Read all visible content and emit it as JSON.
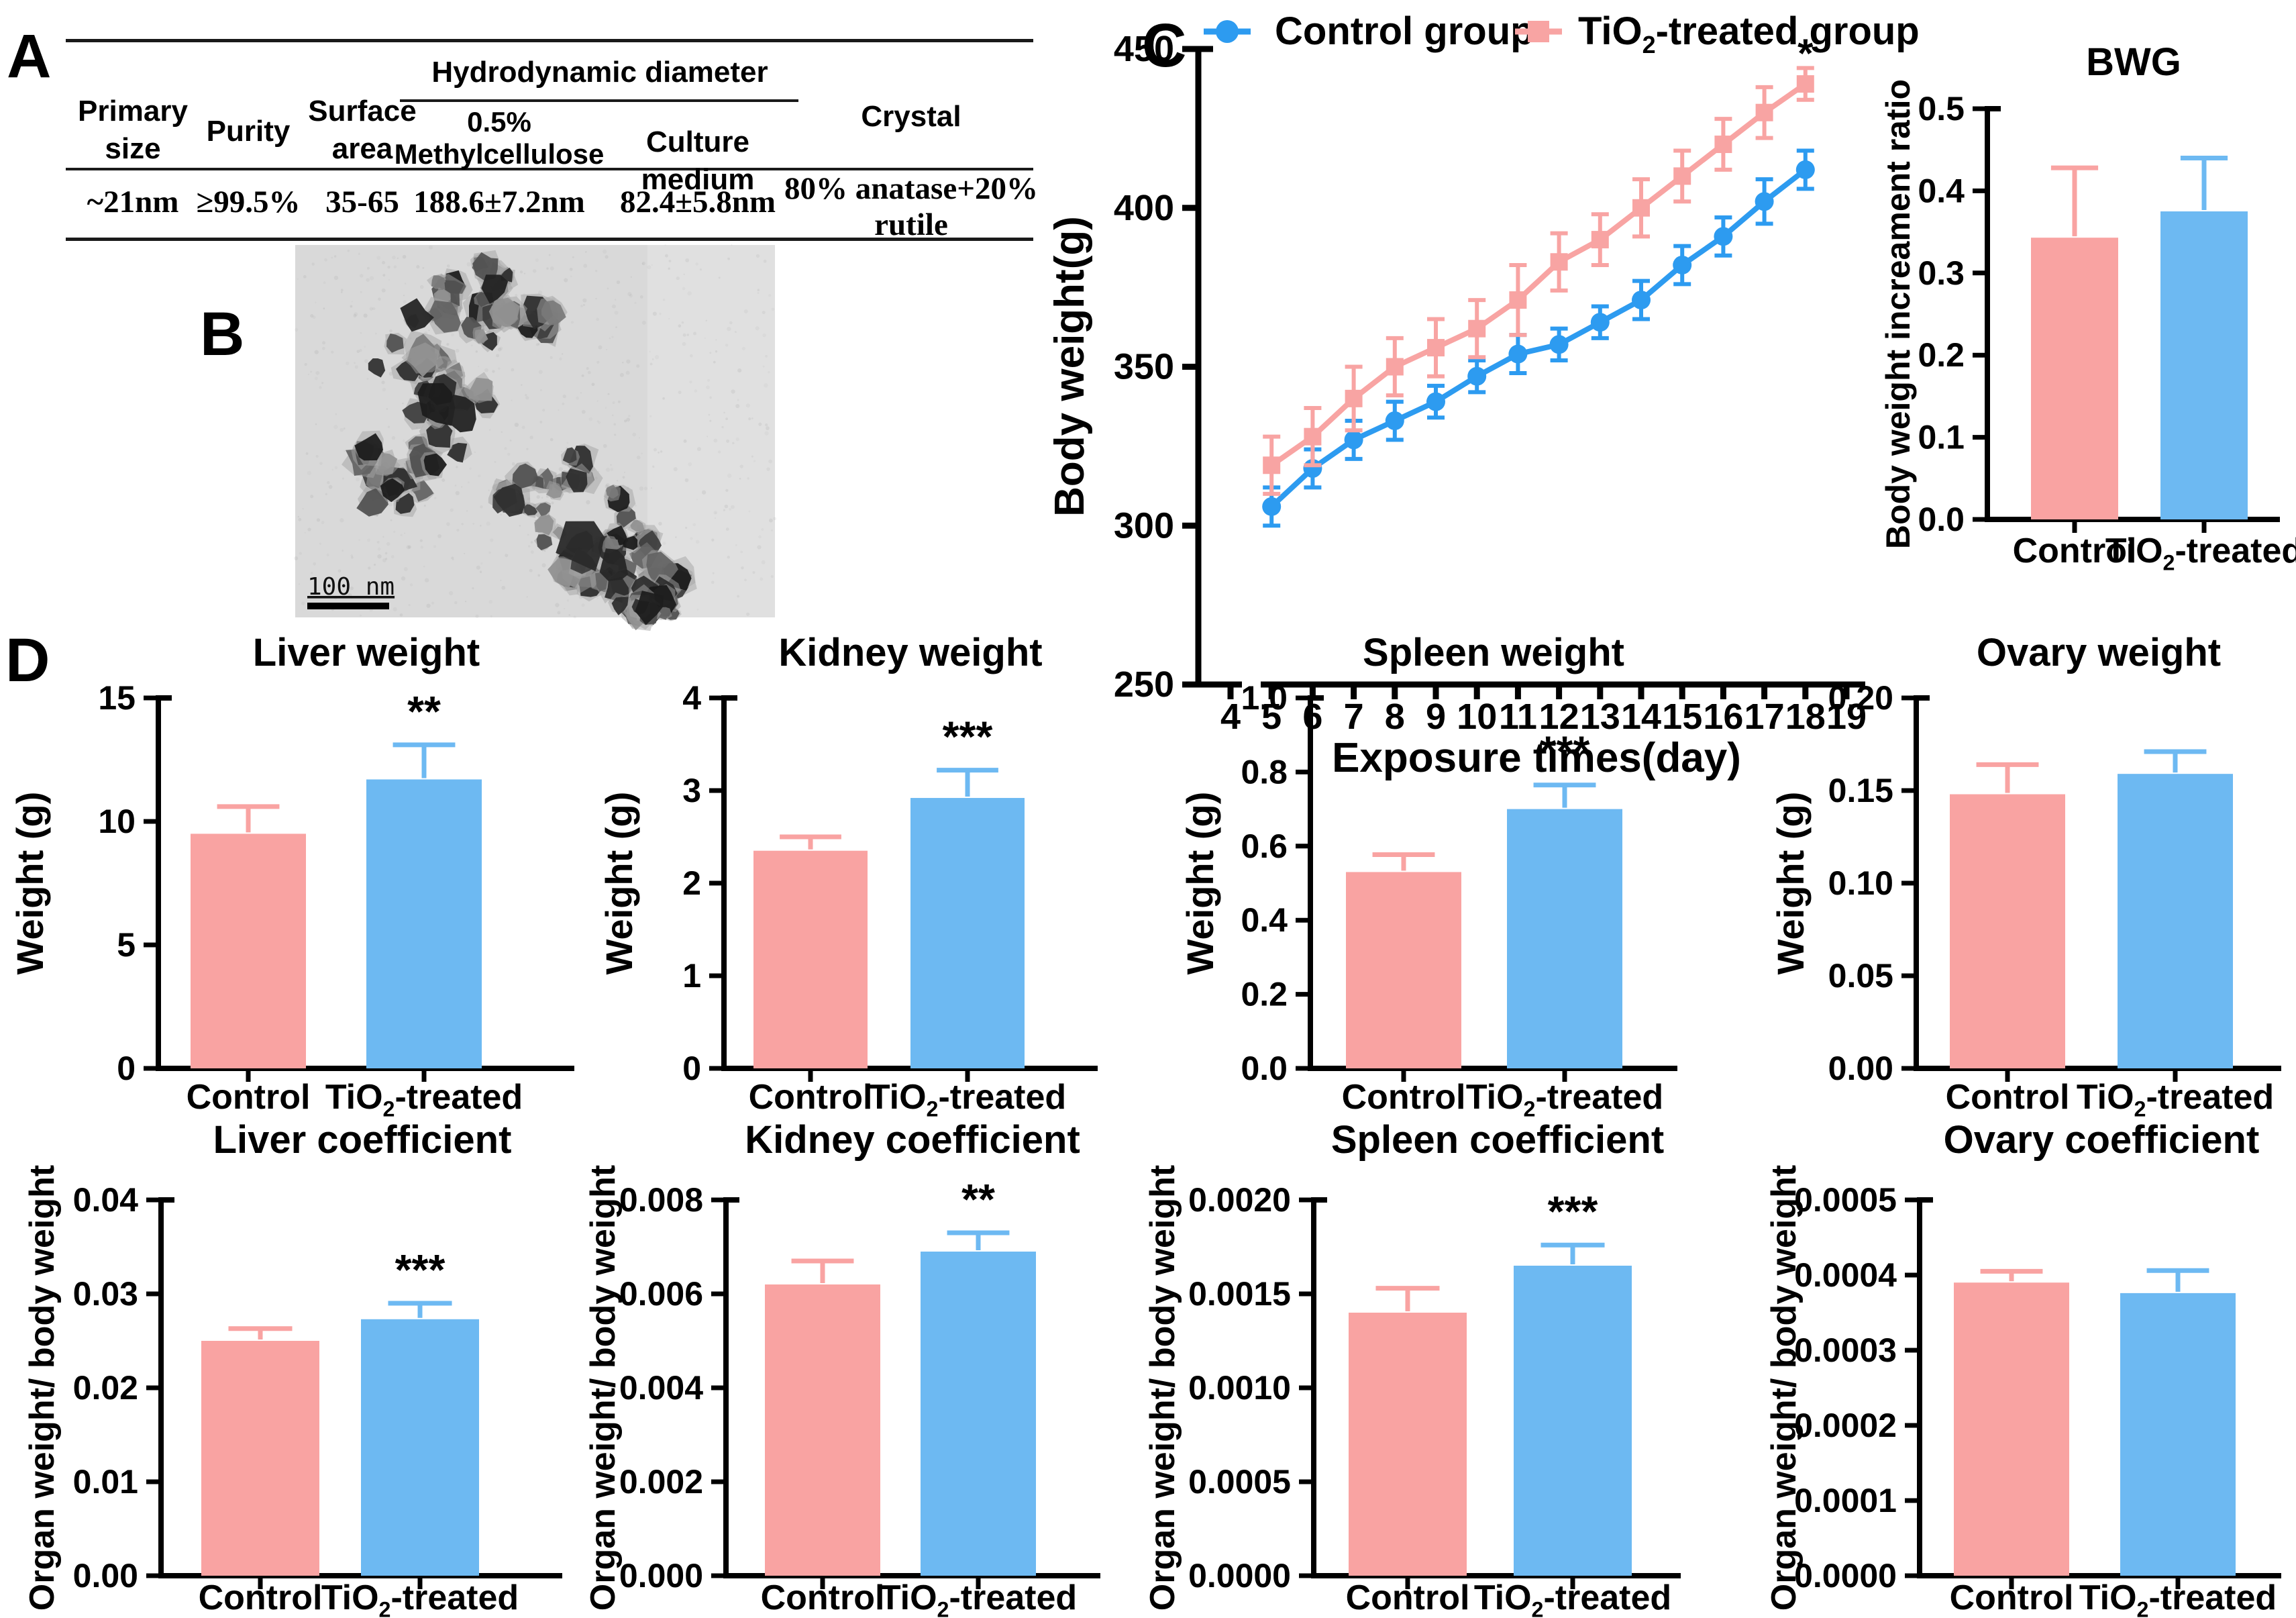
{
  "panels": {
    "a": "A",
    "b": "B",
    "c": "C",
    "d": "D"
  },
  "table": {
    "headers": {
      "primary_size": "Primary size",
      "purity": "Purity",
      "surface_area": "Surface area",
      "hydrodynamic_diameter": "Hydrodynamic diameter",
      "methylcellulose": "0.5% Methylcellulose",
      "culture_medium": "Culture medium",
      "crystal": "Crystal"
    },
    "row": {
      "primary_size": "~21nm",
      "purity": "≥99.5%",
      "surface_area": "35-65",
      "methylcellulose": "188.6±7.2nm",
      "culture_medium": "82.4±5.8nm",
      "crystal": "80% anatase+20% rutile"
    }
  },
  "tem": {
    "scale_label": "100 nm"
  },
  "colors": {
    "pink": "#F9A3A2",
    "blue": "#6DB9F2",
    "line_blue": "#2D9BF0",
    "line_pink": "#F8A4A3",
    "axis": "#000000"
  },
  "chart_data": [
    {
      "id": "body_weight",
      "type": "line",
      "title": "",
      "xlabel": "Exposure times(day)",
      "ylabel": "Body weight(g)",
      "xlim": [
        4,
        19
      ],
      "ylim": [
        250,
        450
      ],
      "xticks": [
        4,
        5,
        6,
        7,
        8,
        9,
        10,
        11,
        12,
        13,
        14,
        15,
        16,
        17,
        18,
        19
      ],
      "yticks": [
        250,
        300,
        350,
        400,
        450
      ],
      "x": [
        5,
        6,
        7,
        8,
        9,
        10,
        11,
        12,
        13,
        14,
        15,
        16,
        17,
        18
      ],
      "legend_position": "top",
      "series": [
        {
          "name": "Control group",
          "color": "line_blue",
          "marker": "circle",
          "values": [
            306,
            318,
            327,
            333,
            339,
            347,
            354,
            357,
            364,
            371,
            382,
            391,
            402,
            412
          ],
          "sd": [
            6,
            6,
            6,
            6,
            5,
            5,
            6,
            5,
            5,
            6,
            6,
            6,
            7,
            6
          ]
        },
        {
          "name": "TiO2-treated group",
          "color": "line_pink",
          "marker": "square",
          "values": [
            319,
            328,
            340,
            350,
            356,
            362,
            371,
            383,
            390,
            400,
            410,
            420,
            430,
            439
          ],
          "sd": [
            9,
            9,
            10,
            9,
            9,
            9,
            11,
            9,
            8,
            9,
            8,
            8,
            8,
            5
          ]
        }
      ],
      "annotation": {
        "text": "*",
        "x": 18,
        "series": 1
      }
    },
    {
      "id": "bwg",
      "type": "bar",
      "title": "BWG",
      "ylabel": "Body weight increament ratio",
      "ylim": [
        0,
        0.5
      ],
      "yticks": [
        0,
        0.1,
        0.2,
        0.3,
        0.4,
        0.5
      ],
      "ydecimals": 1,
      "categories": [
        "Control",
        "TiO2-treated"
      ],
      "values": [
        0.343,
        0.375
      ],
      "errors": [
        0.085,
        0.065
      ],
      "bar_colors": [
        "pink",
        "blue"
      ],
      "sig": null
    },
    {
      "id": "liver_weight",
      "type": "bar",
      "title": "Liver weight",
      "ylabel": "Weight (g)",
      "ylim": [
        0,
        15
      ],
      "yticks": [
        0,
        5,
        10,
        15
      ],
      "ydecimals": 0,
      "categories": [
        "Control",
        "TiO2-treated"
      ],
      "values": [
        9.5,
        11.7
      ],
      "errors": [
        1.1,
        1.4
      ],
      "bar_colors": [
        "pink",
        "blue"
      ],
      "sig": "**"
    },
    {
      "id": "kidney_weight",
      "type": "bar",
      "title": "Kidney weight",
      "ylabel": "Weight (g)",
      "ylim": [
        0,
        4
      ],
      "yticks": [
        0,
        1,
        2,
        3,
        4
      ],
      "ydecimals": 0,
      "categories": [
        "Control",
        "TiO2-treated"
      ],
      "values": [
        2.35,
        2.92
      ],
      "errors": [
        0.15,
        0.3
      ],
      "bar_colors": [
        "pink",
        "blue"
      ],
      "sig": "***"
    },
    {
      "id": "spleen_weight",
      "type": "bar",
      "title": "Spleen weight",
      "ylabel": "Weight (g)",
      "ylim": [
        0,
        1
      ],
      "yticks": [
        0,
        0.2,
        0.4,
        0.6,
        0.8,
        1
      ],
      "ydecimals": 1,
      "categories": [
        "Control",
        "TiO2-treated"
      ],
      "values": [
        0.53,
        0.7
      ],
      "errors": [
        0.047,
        0.065
      ],
      "bar_colors": [
        "pink",
        "blue"
      ],
      "sig": "***"
    },
    {
      "id": "ovary_weight",
      "type": "bar",
      "title": "Ovary weight",
      "ylabel": "Weight (g)",
      "ylim": [
        0,
        0.2
      ],
      "yticks": [
        0,
        0.05,
        0.1,
        0.15,
        0.2
      ],
      "ydecimals": 2,
      "categories": [
        "Control",
        "TiO2-treated"
      ],
      "values": [
        0.148,
        0.159
      ],
      "errors": [
        0.016,
        0.012
      ],
      "bar_colors": [
        "pink",
        "blue"
      ],
      "sig": null
    },
    {
      "id": "liver_coeff",
      "type": "bar",
      "title": "Liver coefficient",
      "ylabel": "Organ weight/ body weight",
      "ylim": [
        0,
        0.04
      ],
      "yticks": [
        0,
        0.01,
        0.02,
        0.03,
        0.04
      ],
      "ydecimals": 2,
      "categories": [
        "Control",
        "TiO2-treated"
      ],
      "values": [
        0.025,
        0.0273
      ],
      "errors": [
        0.0013,
        0.0017
      ],
      "bar_colors": [
        "pink",
        "blue"
      ],
      "sig": "***"
    },
    {
      "id": "kidney_coeff",
      "type": "bar",
      "title": "Kidney coefficient",
      "ylabel": "Organ weight/ body weight",
      "ylim": [
        0,
        0.008
      ],
      "yticks": [
        0,
        0.002,
        0.004,
        0.006,
        0.008
      ],
      "ydecimals": 3,
      "categories": [
        "Control",
        "TiO2-treated"
      ],
      "values": [
        0.0062,
        0.0069
      ],
      "errors": [
        0.0005,
        0.0004
      ],
      "bar_colors": [
        "pink",
        "blue"
      ],
      "sig": "**"
    },
    {
      "id": "spleen_coeff",
      "type": "bar",
      "title": "Spleen coefficient",
      "ylabel": "Organ weight/ body weight",
      "ylim": [
        0,
        0.002
      ],
      "yticks": [
        0,
        0.0005,
        0.001,
        0.0015,
        0.002
      ],
      "ydecimals": 4,
      "categories": [
        "Control",
        "TiO2-treated"
      ],
      "values": [
        0.0014,
        0.00165
      ],
      "errors": [
        0.00013,
        0.00011
      ],
      "bar_colors": [
        "pink",
        "blue"
      ],
      "sig": "***"
    },
    {
      "id": "ovary_coeff",
      "type": "bar",
      "title": "Ovary coefficient",
      "ylabel": "Organ weight/ body weight",
      "ylim": [
        0,
        0.0005
      ],
      "yticks": [
        0,
        0.0001,
        0.0002,
        0.0003,
        0.0004,
        0.0005
      ],
      "ydecimals": 4,
      "categories": [
        "Control",
        "TiO2-treated"
      ],
      "values": [
        0.00039,
        0.000376
      ],
      "errors": [
        1.5e-05,
        3e-05
      ],
      "bar_colors": [
        "pink",
        "blue"
      ],
      "sig": null
    }
  ]
}
